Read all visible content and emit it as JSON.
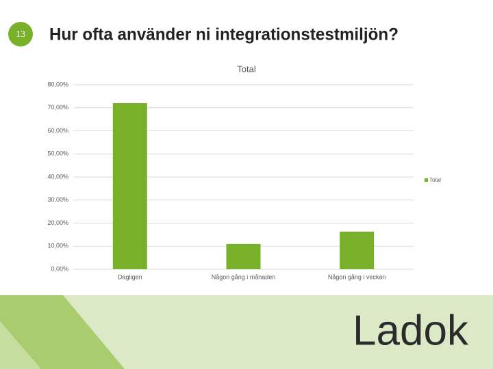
{
  "slide_number": "13",
  "title": "Hur ofta använder ni integrationstestmiljön?",
  "logo": "Ladok",
  "chart_data": {
    "type": "bar",
    "title": "Total",
    "categories": [
      "Dagligen",
      "Någon gång i månaden",
      "Någon gång i veckan"
    ],
    "series": [
      {
        "name": "Total",
        "color": "#78b02a",
        "values": [
          72,
          11,
          16.3
        ]
      }
    ],
    "ylim": [
      0,
      80
    ],
    "yticks": [
      {
        "value": 0,
        "label": "0,00%"
      },
      {
        "value": 10,
        "label": "10,00%"
      },
      {
        "value": 20,
        "label": "20,00%"
      },
      {
        "value": 30,
        "label": "30,00%"
      },
      {
        "value": 40,
        "label": "40,00%"
      },
      {
        "value": 50,
        "label": "50,00%"
      },
      {
        "value": 60,
        "label": "60,00%"
      },
      {
        "value": 70,
        "label": "70,00%"
      },
      {
        "value": 80,
        "label": "80,00%"
      }
    ],
    "grid": true,
    "legend": "right"
  }
}
